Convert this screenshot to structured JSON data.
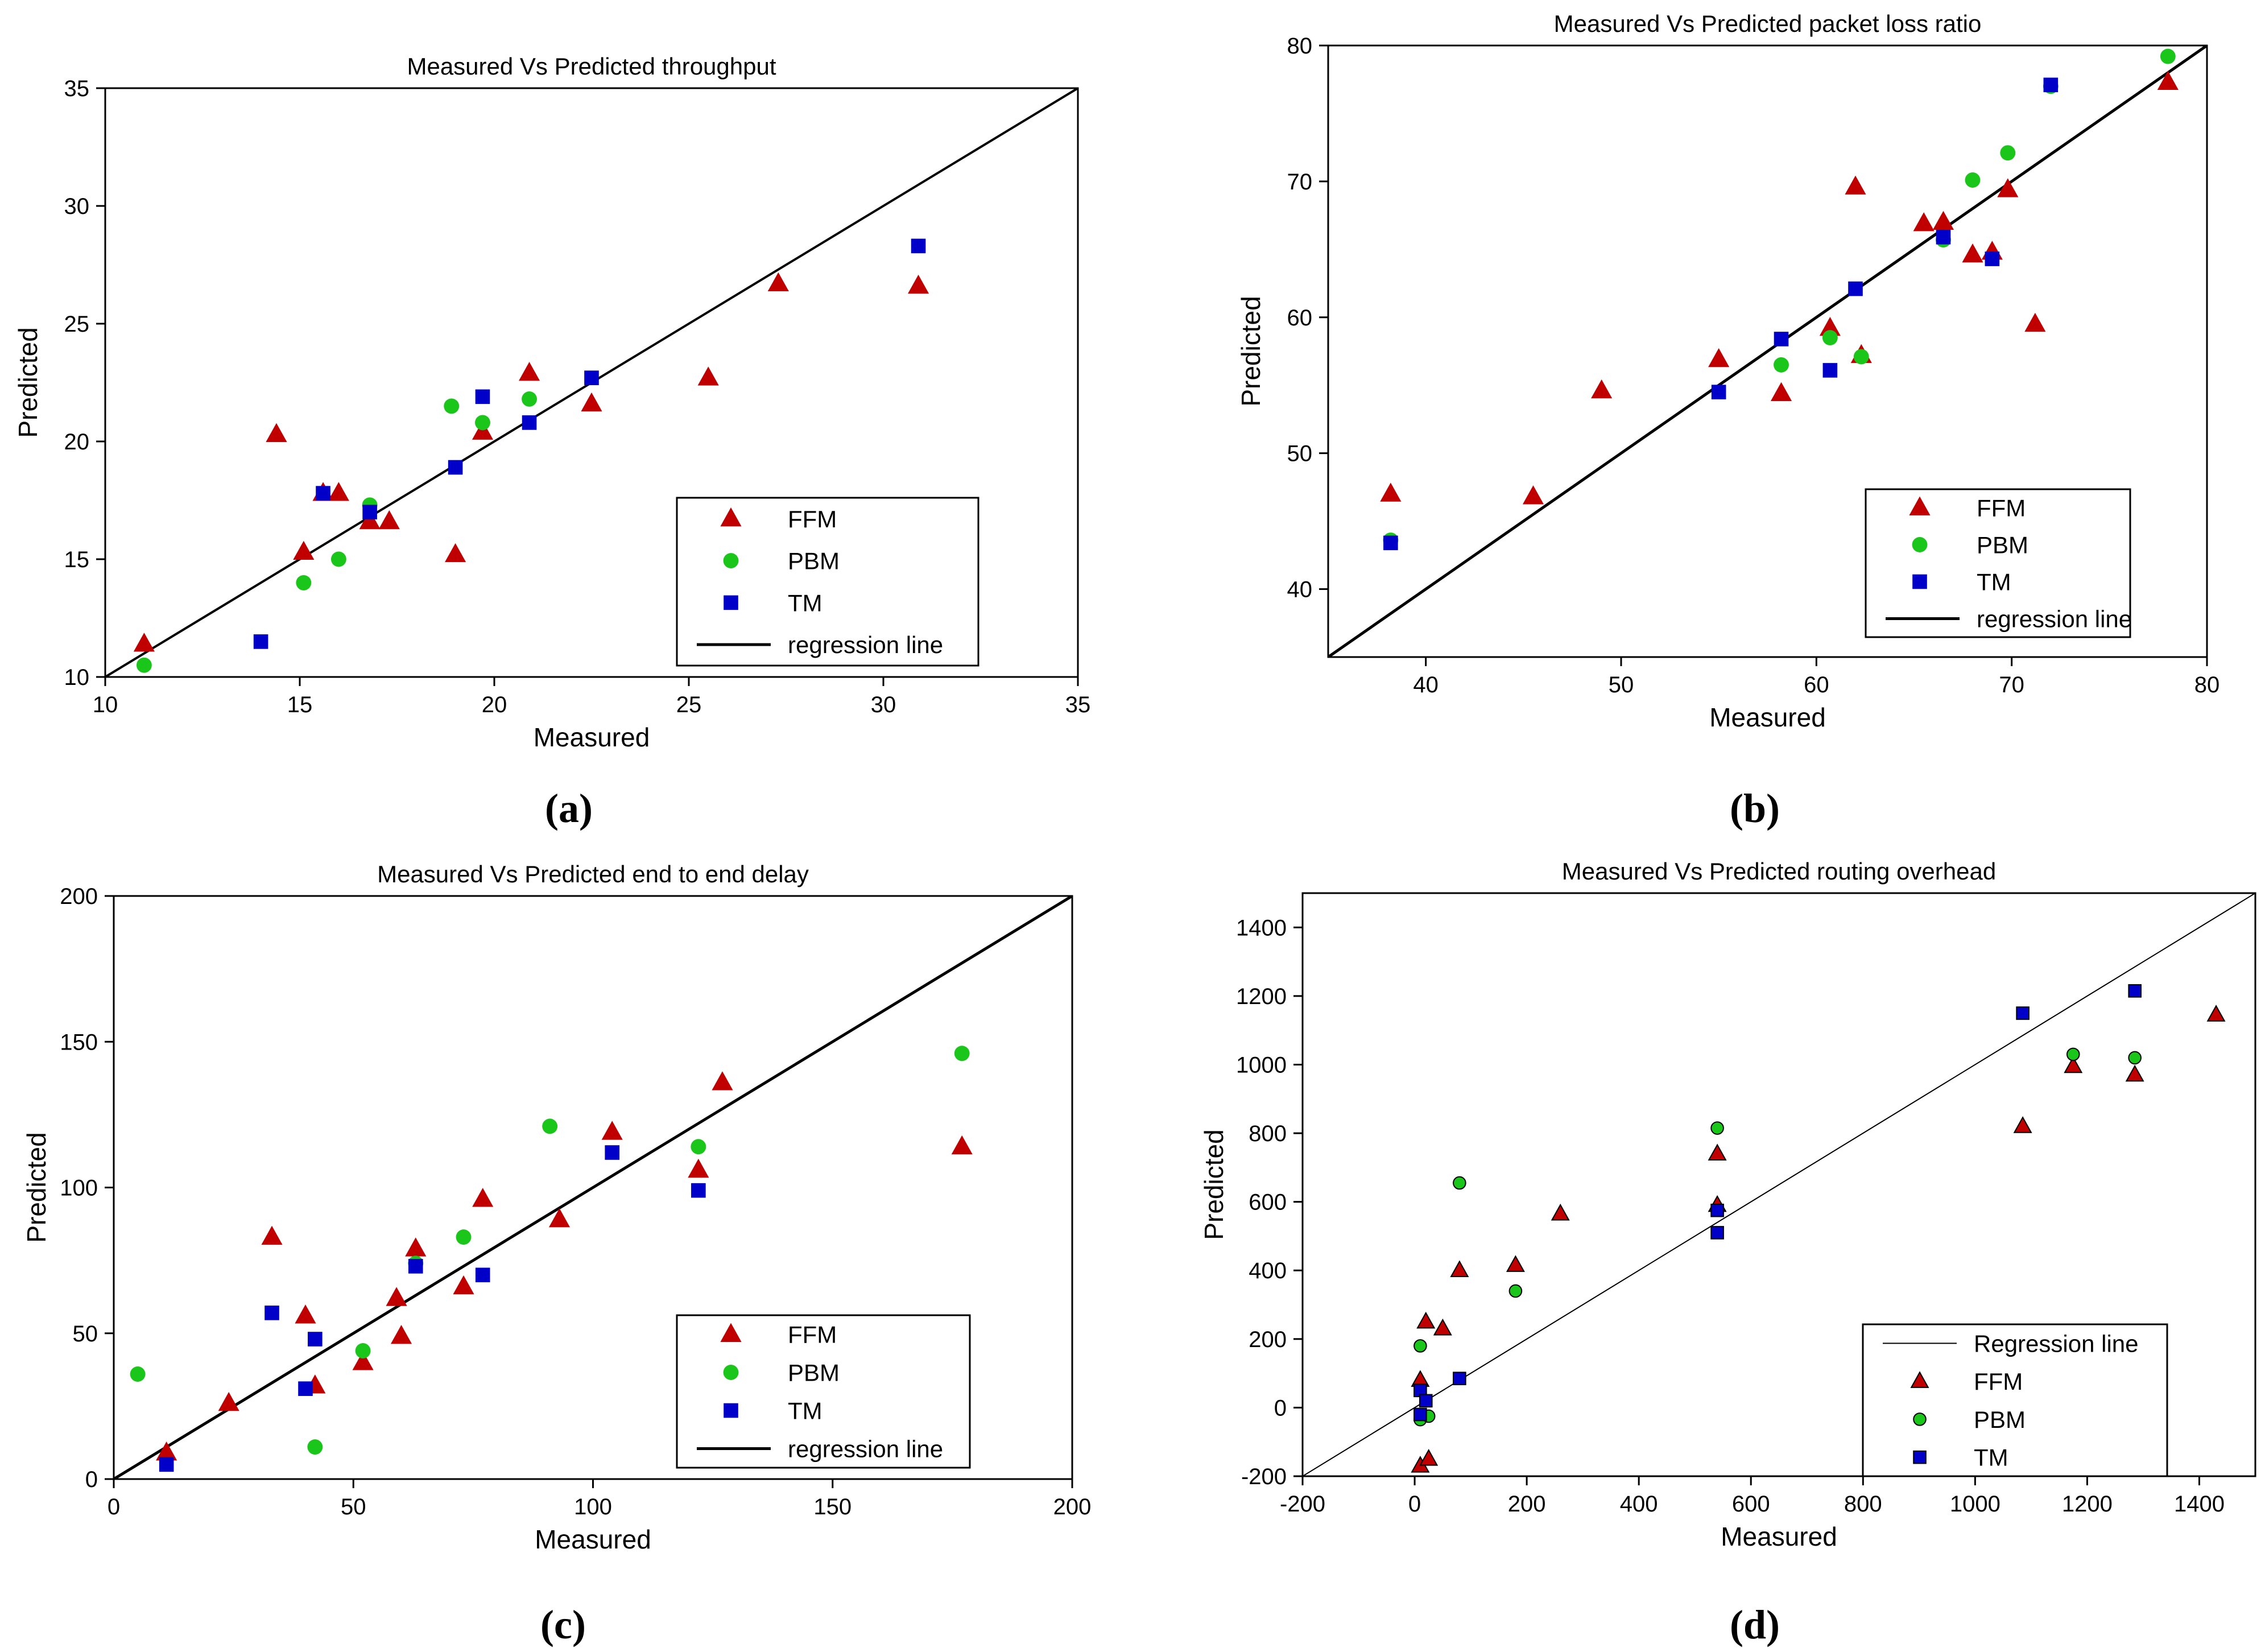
{
  "figure": {
    "colors": {
      "ffm": "#c00000",
      "pbm": "#19c619",
      "tm": "#0000c8",
      "line": "#000000"
    }
  },
  "chart_data": [
    {
      "id": "a",
      "type": "scatter",
      "caption": "(a)",
      "title": "Measured Vs Predicted throughput",
      "xlabel": "Measured",
      "ylabel": "Predicted",
      "xlim": [
        10,
        35
      ],
      "ylim": [
        10,
        35
      ],
      "xticks": [
        10,
        15,
        20,
        25,
        30,
        35
      ],
      "yticks": [
        10,
        15,
        20,
        25,
        30,
        35
      ],
      "legend_position": "bottom-right",
      "regression": {
        "label": "regression line",
        "from": [
          10,
          10
        ],
        "to": [
          35,
          35
        ]
      },
      "series": [
        {
          "name": "FFM",
          "marker": "triangle",
          "color": "#c00000",
          "points": [
            [
              11.0,
              11.4
            ],
            [
              14.4,
              20.3
            ],
            [
              15.1,
              15.3
            ],
            [
              15.6,
              17.8
            ],
            [
              16.0,
              17.8
            ],
            [
              16.8,
              16.6
            ],
            [
              17.3,
              16.6
            ],
            [
              19.0,
              15.2
            ],
            [
              19.7,
              20.4
            ],
            [
              20.9,
              22.9
            ],
            [
              22.5,
              21.6
            ],
            [
              25.5,
              22.7
            ],
            [
              27.3,
              26.7
            ],
            [
              30.9,
              26.6
            ]
          ]
        },
        {
          "name": "PBM",
          "marker": "circle",
          "color": "#19c619",
          "points": [
            [
              11.0,
              10.5
            ],
            [
              15.1,
              14.0
            ],
            [
              16.0,
              15.0
            ],
            [
              16.8,
              17.3
            ],
            [
              18.9,
              21.5
            ],
            [
              19.7,
              20.8
            ],
            [
              20.9,
              21.8
            ]
          ]
        },
        {
          "name": "TM",
          "marker": "square",
          "color": "#0000c8",
          "points": [
            [
              14.0,
              11.5
            ],
            [
              15.6,
              17.8
            ],
            [
              16.8,
              17.0
            ],
            [
              19.0,
              18.9
            ],
            [
              19.7,
              21.9
            ],
            [
              20.9,
              20.8
            ],
            [
              22.5,
              22.7
            ],
            [
              30.9,
              28.3
            ]
          ]
        }
      ]
    },
    {
      "id": "b",
      "type": "scatter",
      "caption": "(b)",
      "title": "Measured Vs Predicted packet loss ratio",
      "xlabel": "Measured",
      "ylabel": "Predicted",
      "xlim": [
        35,
        80
      ],
      "ylim": [
        35,
        80
      ],
      "xticks": [
        40,
        50,
        60,
        70,
        80
      ],
      "yticks": [
        40,
        50,
        60,
        70,
        80
      ],
      "legend_position": "bottom-right",
      "regression": {
        "label": "regression line",
        "from": [
          35,
          35
        ],
        "to": [
          80,
          80
        ]
      },
      "series": [
        {
          "name": "FFM",
          "marker": "triangle",
          "color": "#c00000",
          "points": [
            [
              38.2,
              47.0
            ],
            [
              45.5,
              46.8
            ],
            [
              49.0,
              54.6
            ],
            [
              55.0,
              56.9
            ],
            [
              58.2,
              54.4
            ],
            [
              60.7,
              59.2
            ],
            [
              62.0,
              69.6
            ],
            [
              62.3,
              57.2
            ],
            [
              65.5,
              66.9
            ],
            [
              66.5,
              67.0
            ],
            [
              68.0,
              64.6
            ],
            [
              69.0,
              64.8
            ],
            [
              69.8,
              69.4
            ],
            [
              71.2,
              59.5
            ],
            [
              78.0,
              77.3
            ]
          ]
        },
        {
          "name": "PBM",
          "marker": "circle",
          "color": "#19c619",
          "points": [
            [
              38.2,
              43.6
            ],
            [
              58.2,
              56.5
            ],
            [
              60.7,
              58.5
            ],
            [
              62.3,
              57.1
            ],
            [
              66.5,
              65.7
            ],
            [
              68.0,
              70.1
            ],
            [
              69.8,
              72.1
            ],
            [
              72.0,
              77.0
            ],
            [
              78.0,
              79.2
            ]
          ]
        },
        {
          "name": "TM",
          "marker": "square",
          "color": "#0000c8",
          "points": [
            [
              38.2,
              43.4
            ],
            [
              55.0,
              54.5
            ],
            [
              58.2,
              58.4
            ],
            [
              60.7,
              56.1
            ],
            [
              62.0,
              62.1
            ],
            [
              66.5,
              65.9
            ],
            [
              69.0,
              64.3
            ],
            [
              72.0,
              77.1
            ]
          ]
        }
      ]
    },
    {
      "id": "c",
      "type": "scatter",
      "caption": "(c)",
      "title": "Measured Vs Predicted end to end delay",
      "xlabel": "Measured",
      "ylabel": "Predicted",
      "xlim": [
        0,
        200
      ],
      "ylim": [
        0,
        200
      ],
      "xticks": [
        0,
        50,
        100,
        150,
        200
      ],
      "yticks": [
        0,
        50,
        100,
        150,
        200
      ],
      "legend_position": "bottom-right",
      "regression": {
        "label": "regression line",
        "from": [
          0,
          0
        ],
        "to": [
          200,
          200
        ]
      },
      "series": [
        {
          "name": "FFM",
          "marker": "triangle",
          "color": "#c00000",
          "points": [
            [
              11,
              9
            ],
            [
              24,
              26
            ],
            [
              33,
              83
            ],
            [
              40,
              56
            ],
            [
              42,
              32
            ],
            [
              52,
              40
            ],
            [
              59,
              62
            ],
            [
              60,
              49
            ],
            [
              63,
              79
            ],
            [
              73,
              66
            ],
            [
              77,
              96
            ],
            [
              93,
              89
            ],
            [
              104,
              119
            ],
            [
              122,
              106
            ],
            [
              127,
              136
            ],
            [
              177,
              114
            ]
          ]
        },
        {
          "name": "PBM",
          "marker": "circle",
          "color": "#19c619",
          "points": [
            [
              5,
              36
            ],
            [
              42,
              11
            ],
            [
              52,
              44
            ],
            [
              63,
              74
            ],
            [
              73,
              83
            ],
            [
              91,
              121
            ],
            [
              122,
              114
            ],
            [
              177,
              146
            ]
          ]
        },
        {
          "name": "TM",
          "marker": "square",
          "color": "#0000c8",
          "points": [
            [
              11,
              5
            ],
            [
              33,
              57
            ],
            [
              40,
              31
            ],
            [
              42,
              48
            ],
            [
              63,
              73
            ],
            [
              77,
              70
            ],
            [
              104,
              112
            ],
            [
              122,
              99
            ]
          ]
        }
      ]
    },
    {
      "id": "d",
      "type": "scatter",
      "caption": "(d)",
      "title": "Measured Vs Predicted routing overhead",
      "xlabel": "Measured",
      "ylabel": "Predicted",
      "xlim": [
        -200,
        1500
      ],
      "ylim": [
        -200,
        1500
      ],
      "xticks": [
        -200,
        0,
        200,
        400,
        600,
        800,
        1000,
        1200,
        1400
      ],
      "yticks": [
        -200,
        0,
        200,
        400,
        600,
        800,
        1000,
        1200,
        1400
      ],
      "legend_position": "bottom-right",
      "regression": {
        "label": "Regression line",
        "from": [
          -200,
          -200
        ],
        "to": [
          1500,
          1500
        ]
      },
      "series": [
        {
          "name": "FFM",
          "marker": "triangle",
          "color": "#c00000",
          "points": [
            [
              10,
              -170
            ],
            [
              10,
              80
            ],
            [
              20,
              250
            ],
            [
              25,
              -150
            ],
            [
              50,
              230
            ],
            [
              80,
              400
            ],
            [
              180,
              415
            ],
            [
              260,
              565
            ],
            [
              540,
              740
            ],
            [
              540,
              590
            ],
            [
              1085,
              820
            ],
            [
              1175,
              995
            ],
            [
              1285,
              970
            ],
            [
              1430,
              1145
            ]
          ]
        },
        {
          "name": "PBM",
          "marker": "circle",
          "color": "#19c619",
          "points": [
            [
              10,
              180
            ],
            [
              10,
              -35
            ],
            [
              25,
              -25
            ],
            [
              80,
              655
            ],
            [
              180,
              340
            ],
            [
              540,
              815
            ],
            [
              1175,
              1030
            ],
            [
              1285,
              1020
            ]
          ]
        },
        {
          "name": "TM",
          "marker": "square",
          "color": "#0000c8",
          "points": [
            [
              10,
              50
            ],
            [
              10,
              -20
            ],
            [
              20,
              20
            ],
            [
              80,
              85
            ],
            [
              540,
              575
            ],
            [
              540,
              510
            ],
            [
              1085,
              1150
            ],
            [
              1285,
              1215
            ]
          ]
        }
      ]
    }
  ]
}
